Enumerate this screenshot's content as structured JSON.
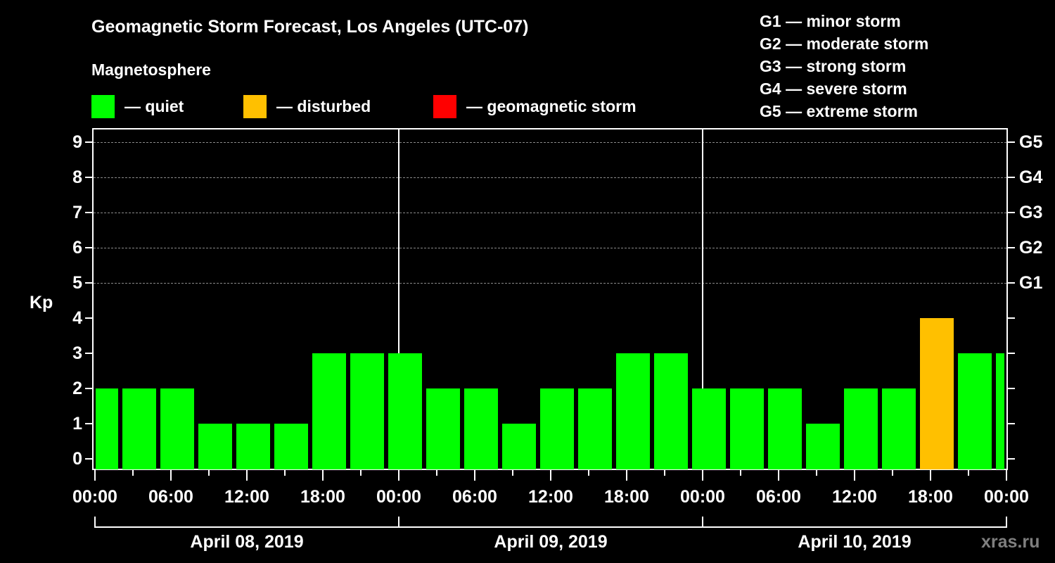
{
  "header": {
    "title": "Geomagnetic Storm Forecast, Los Angeles (UTC-07)",
    "subtitle": "Magnetosphere"
  },
  "legend": [
    {
      "label": "— quiet",
      "color": "#00ff00"
    },
    {
      "label": "— disturbed",
      "color": "#ffc000"
    },
    {
      "label": "— geomagnetic storm",
      "color": "#ff0000"
    }
  ],
  "storm_levels": [
    "G1 — minor storm",
    "G2 — moderate storm",
    "G3 — strong storm",
    "G4 — severe storm",
    "G5 — extreme storm"
  ],
  "axis": {
    "ylabel": "Kp",
    "yticks": [
      "0",
      "1",
      "2",
      "3",
      "4",
      "5",
      "6",
      "7",
      "8",
      "9"
    ],
    "right_labels": [
      {
        "kp": 5,
        "label": "G1"
      },
      {
        "kp": 6,
        "label": "G2"
      },
      {
        "kp": 7,
        "label": "G3"
      },
      {
        "kp": 8,
        "label": "G4"
      },
      {
        "kp": 9,
        "label": "G5"
      }
    ],
    "xticks": [
      "00:00",
      "06:00",
      "12:00",
      "18:00",
      "00:00",
      "06:00",
      "12:00",
      "18:00",
      "00:00",
      "06:00",
      "12:00",
      "18:00",
      "00:00"
    ],
    "dates": [
      "April 08, 2019",
      "April 09, 2019",
      "April 10, 2019"
    ]
  },
  "watermark": "xras.ru",
  "colors": {
    "quiet": "#00ff00",
    "disturbed": "#ffc000",
    "storm": "#ff0000",
    "grid": "#8a8a8a"
  },
  "chart_data": {
    "type": "bar",
    "title": "Geomagnetic Storm Forecast, Los Angeles (UTC-07)",
    "xlabel": "",
    "ylabel": "Kp",
    "ylim": [
      0,
      9
    ],
    "grid": "dashed horizontal at Kp 5-9",
    "legend_position": "top",
    "categories": [
      "Apr 08 00:00",
      "Apr 08 03:00",
      "Apr 08 06:00",
      "Apr 08 09:00",
      "Apr 08 12:00",
      "Apr 08 15:00",
      "Apr 08 18:00",
      "Apr 08 21:00",
      "Apr 09 00:00",
      "Apr 09 03:00",
      "Apr 09 06:00",
      "Apr 09 09:00",
      "Apr 09 12:00",
      "Apr 09 15:00",
      "Apr 09 18:00",
      "Apr 09 21:00",
      "Apr 10 00:00",
      "Apr 10 03:00",
      "Apr 10 06:00",
      "Apr 10 09:00",
      "Apr 10 12:00",
      "Apr 10 15:00",
      "Apr 10 18:00",
      "Apr 10 21:00",
      "Apr 11 00:00"
    ],
    "values": [
      2,
      2,
      2,
      1,
      1,
      1,
      3,
      3,
      3,
      2,
      2,
      1,
      2,
      2,
      3,
      3,
      2,
      2,
      2,
      1,
      2,
      2,
      4,
      3,
      3
    ],
    "status": [
      "quiet",
      "quiet",
      "quiet",
      "quiet",
      "quiet",
      "quiet",
      "quiet",
      "quiet",
      "quiet",
      "quiet",
      "quiet",
      "quiet",
      "quiet",
      "quiet",
      "quiet",
      "quiet",
      "quiet",
      "quiet",
      "quiet",
      "quiet",
      "quiet",
      "quiet",
      "disturbed",
      "quiet",
      "quiet"
    ],
    "right_axis": {
      "5": "G1",
      "6": "G2",
      "7": "G3",
      "8": "G4",
      "9": "G5"
    }
  }
}
